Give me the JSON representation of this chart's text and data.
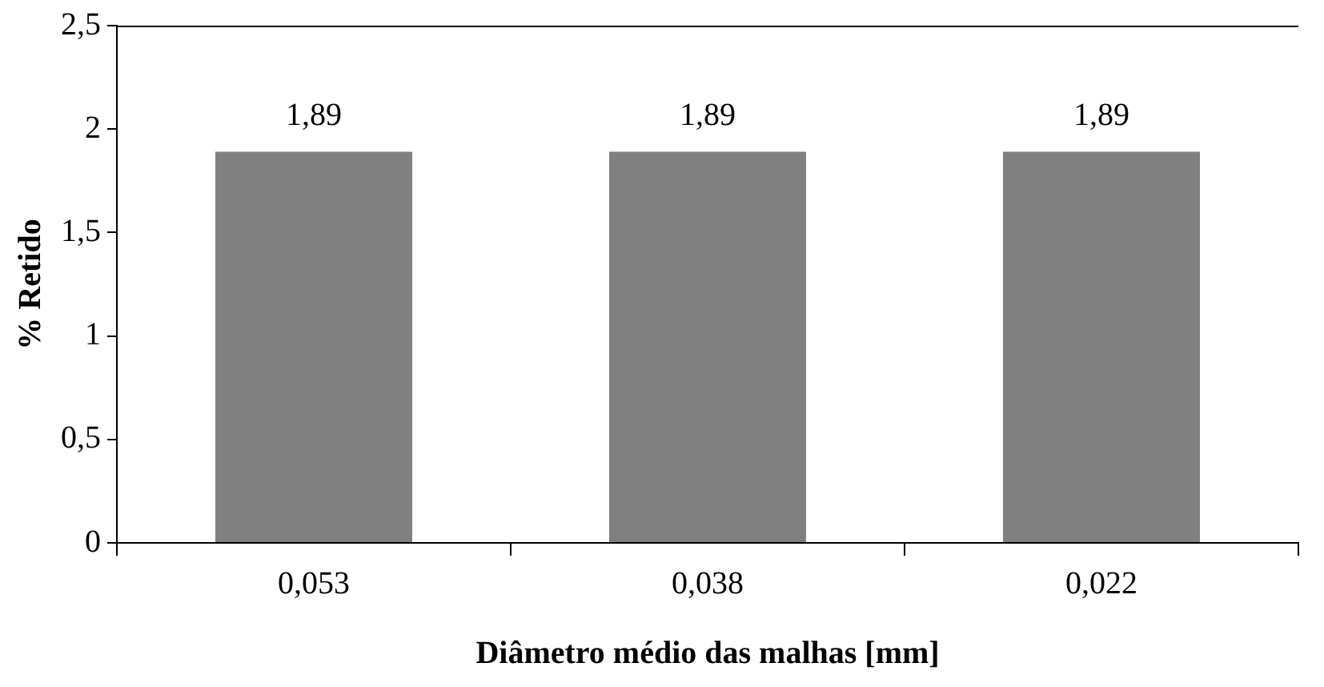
{
  "chart_data": {
    "type": "bar",
    "xlabel": "Diâmetro médio das malhas [mm]",
    "ylabel": "% Retido",
    "categories": [
      "0,053",
      "0,038",
      "0,022"
    ],
    "values": [
      1.89,
      1.89,
      1.89
    ],
    "color": "#808080",
    "value_labels": [
      "1,89",
      "1,89",
      "1,89"
    ],
    "ylim": [
      0,
      2.5
    ],
    "yticks": [
      0,
      {
        "value": 0.5,
        "label": "0,5"
      },
      1,
      {
        "value": 1.5,
        "label": "1,5"
      },
      2,
      {
        "value": 2.5,
        "label": "2,5"
      }
    ],
    "grid": false,
    "legend": false
  }
}
